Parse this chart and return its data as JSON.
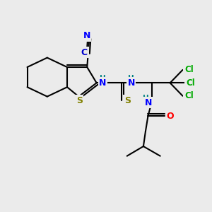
{
  "background_color": "#ebebeb",
  "bond_color": "#000000",
  "atom_colors": {
    "N": "#0000ff",
    "S_thio": "#808000",
    "S_ring": "#808000",
    "Cl": "#00aa00",
    "O": "#ff0000",
    "C": "#000000",
    "H": "#008080",
    "CN_label": "#0000cd"
  },
  "figsize": [
    3.0,
    3.0
  ],
  "dpi": 100
}
